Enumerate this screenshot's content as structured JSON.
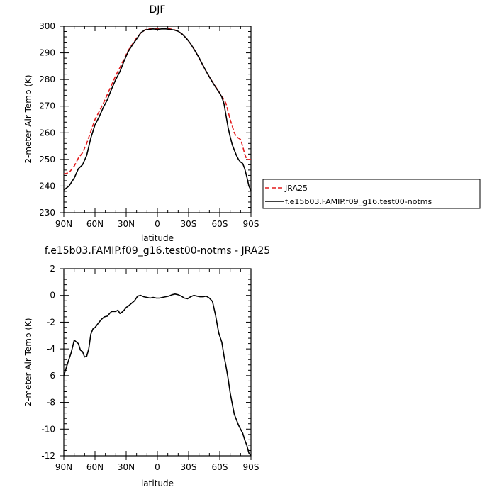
{
  "charts": [
    {
      "type": "line",
      "title": "DJF",
      "xlabel": "latitude",
      "ylabel": "2-meter Air Temp (K)",
      "x_ticks": [
        -90,
        -60,
        -30,
        0,
        30,
        60,
        90
      ],
      "x_tick_labels": [
        "90N",
        "60N",
        "30N",
        "0",
        "30S",
        "60S",
        "90S"
      ],
      "xlim": [
        -90,
        90
      ],
      "ylim": [
        230,
        300
      ],
      "y_ticks": [
        230,
        240,
        250,
        260,
        270,
        280,
        290,
        300
      ],
      "y_tick_labels": [
        "230",
        "240",
        "250",
        "260",
        "270",
        "280",
        "290",
        "300"
      ],
      "grid": false,
      "legend_position": "right-outside",
      "series": [
        {
          "name": "JRA25",
          "color": "#e31a1c",
          "dash": "dashed",
          "x": [
            -90,
            -85,
            -80,
            -76,
            -72,
            -68,
            -64,
            -60,
            -56,
            -52,
            -48,
            -44,
            -40,
            -36,
            -32,
            -28,
            -24,
            -20,
            -16,
            -12,
            -8,
            -4,
            0,
            4,
            8,
            12,
            16,
            20,
            24,
            28,
            32,
            36,
            40,
            44,
            48,
            52,
            56,
            60,
            62,
            64,
            66,
            68,
            70,
            72,
            74,
            76,
            78,
            80,
            82,
            84,
            86,
            88,
            90
          ],
          "y": [
            244.5,
            245,
            247.5,
            250.5,
            252.5,
            256,
            260.5,
            265,
            268,
            271,
            274.5,
            278,
            281.5,
            284.5,
            287.8,
            290.9,
            293.3,
            295.6,
            297.4,
            298.6,
            299.1,
            299.2,
            299,
            299.2,
            299.2,
            299,
            298.7,
            298.1,
            297,
            295.4,
            293.4,
            290.9,
            288.1,
            285.2,
            282.3,
            279.7,
            277.3,
            274.9,
            273.7,
            272.5,
            271,
            268,
            265,
            262.5,
            260,
            258.5,
            258,
            257.5,
            255,
            252,
            250,
            250,
            250
          ]
        },
        {
          "name": "f.e15b03.FAMIP.f09_g16.test00-notms",
          "color": "#000000",
          "dash": "solid",
          "x": [
            -90,
            -85,
            -80,
            -76,
            -72,
            -68,
            -64,
            -60,
            -56,
            -52,
            -48,
            -44,
            -40,
            -36,
            -32,
            -28,
            -24,
            -20,
            -16,
            -12,
            -8,
            -4,
            0,
            4,
            8,
            12,
            16,
            20,
            24,
            28,
            32,
            36,
            40,
            44,
            48,
            52,
            56,
            60,
            62,
            64,
            66,
            68,
            70,
            72,
            74,
            76,
            78,
            80,
            82,
            84,
            86,
            88,
            90
          ],
          "y": [
            238.5,
            240,
            243,
            246.5,
            248,
            251.5,
            258,
            263,
            266,
            269.5,
            272.5,
            276.5,
            280,
            283,
            287,
            290.5,
            293,
            295.2,
            297.5,
            298.6,
            298.8,
            299,
            298.8,
            299,
            299,
            298.8,
            298.6,
            298.1,
            297,
            295.4,
            293.4,
            290.9,
            288.2,
            285.2,
            282.3,
            279.6,
            277.1,
            274.8,
            273.4,
            271,
            266.5,
            262,
            258.5,
            255.5,
            253.5,
            251.5,
            250,
            249,
            248.5,
            246.5,
            243.5,
            240,
            238.3
          ]
        }
      ]
    },
    {
      "type": "line",
      "title": "f.e15b03.FAMIP.f09_g16.test00-notms - JRA25",
      "xlabel": "latitude",
      "ylabel": "2-meter Air Temp (K)",
      "x_ticks": [
        -90,
        -60,
        -30,
        0,
        30,
        60,
        90
      ],
      "x_tick_labels": [
        "90N",
        "60N",
        "30N",
        "0",
        "30S",
        "60S",
        "90S"
      ],
      "xlim": [
        -90,
        90
      ],
      "ylim": [
        -12,
        2
      ],
      "y_ticks": [
        -12,
        -10,
        -8,
        -6,
        -4,
        -2,
        0,
        2
      ],
      "y_tick_labels": [
        "-12",
        "-10",
        "-8",
        "-6",
        "-4",
        "-2",
        "0",
        "2"
      ],
      "grid": false,
      "series": [
        {
          "name": "",
          "color": "#000000",
          "dash": "solid",
          "x": [
            -90,
            -86,
            -83,
            -80,
            -76,
            -74,
            -72,
            -70,
            -68,
            -66,
            -64,
            -62,
            -60,
            -57,
            -54,
            -51,
            -48,
            -46,
            -44,
            -42,
            -40,
            -38,
            -36,
            -34,
            -32,
            -30,
            -28,
            -25,
            -22,
            -19,
            -16,
            -13,
            -10,
            -7,
            -4,
            -1,
            2,
            5,
            8,
            11,
            14,
            17,
            20,
            23,
            26,
            29,
            32,
            35,
            38,
            41,
            44,
            47,
            50,
            53,
            56,
            59,
            62,
            64,
            66,
            68,
            70,
            72,
            74,
            76,
            78,
            80,
            82,
            84,
            86,
            88,
            90
          ],
          "y": [
            -6,
            -5,
            -4.3,
            -3.35,
            -3.6,
            -4.1,
            -4.2,
            -4.6,
            -4.55,
            -4.0,
            -2.9,
            -2.5,
            -2.4,
            -2.1,
            -1.8,
            -1.6,
            -1.55,
            -1.35,
            -1.2,
            -1.2,
            -1.2,
            -1.1,
            -1.35,
            -1.25,
            -1.1,
            -0.9,
            -0.8,
            -0.6,
            -0.4,
            -0.05,
            -0.0,
            -0.1,
            -0.15,
            -0.2,
            -0.15,
            -0.2,
            -0.2,
            -0.15,
            -0.1,
            -0.05,
            0.05,
            0.1,
            0.05,
            -0.05,
            -0.2,
            -0.25,
            -0.1,
            0.0,
            -0.05,
            -0.1,
            -0.1,
            -0.05,
            -0.2,
            -0.45,
            -1.5,
            -2.8,
            -3.5,
            -4.5,
            -5.3,
            -6.2,
            -7.3,
            -8.1,
            -8.9,
            -9.3,
            -9.7,
            -10.0,
            -10.3,
            -10.8,
            -11.2,
            -11.8,
            -12.0
          ]
        }
      ]
    }
  ]
}
